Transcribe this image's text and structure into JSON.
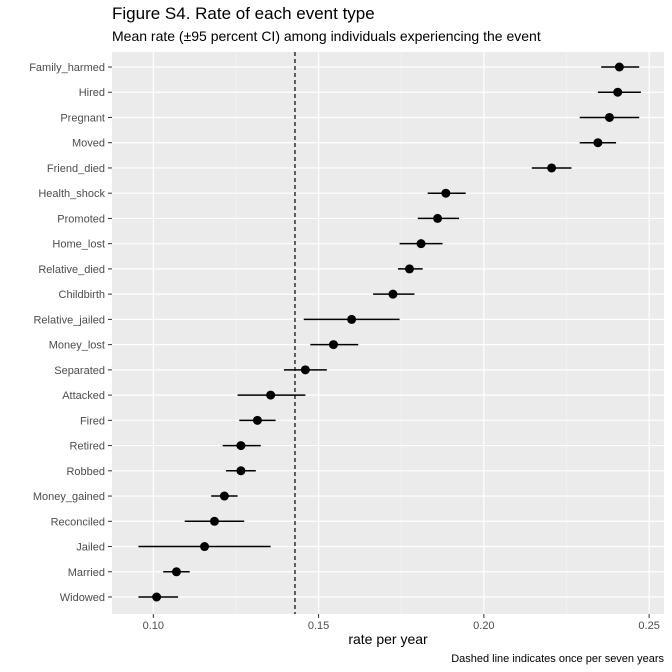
{
  "chart_data": {
    "type": "scatter",
    "title": "Figure S4. Rate of each event type",
    "subtitle": "Mean rate (±95 percent CI) among individuals experiencing the event",
    "xlabel": "rate per year",
    "ylabel": "",
    "caption": "Dashed line indicates once per seven years",
    "xlim": [
      0.0875,
      0.2545
    ],
    "x_ticks": [
      0.1,
      0.15,
      0.2,
      0.25
    ],
    "x_tick_labels": [
      "0.10",
      "0.15",
      "0.20",
      "0.25"
    ],
    "reference_line": 0.142857,
    "grid": true,
    "colors": {
      "panel": "#ebebeb",
      "grid_major": "#ffffff",
      "points": "#000000"
    },
    "points": [
      {
        "label": "Family_harmed",
        "mean": 0.241,
        "lo": 0.2355,
        "hi": 0.247
      },
      {
        "label": "Hired",
        "mean": 0.2405,
        "lo": 0.2345,
        "hi": 0.2475
      },
      {
        "label": "Pregnant",
        "mean": 0.238,
        "lo": 0.229,
        "hi": 0.247
      },
      {
        "label": "Moved",
        "mean": 0.2345,
        "lo": 0.229,
        "hi": 0.24
      },
      {
        "label": "Friend_died",
        "mean": 0.2205,
        "lo": 0.2145,
        "hi": 0.2265
      },
      {
        "label": "Health_shock",
        "mean": 0.1885,
        "lo": 0.183,
        "hi": 0.1945
      },
      {
        "label": "Promoted",
        "mean": 0.186,
        "lo": 0.18,
        "hi": 0.1925
      },
      {
        "label": "Home_lost",
        "mean": 0.181,
        "lo": 0.1745,
        "hi": 0.1875
      },
      {
        "label": "Relative_died",
        "mean": 0.1775,
        "lo": 0.174,
        "hi": 0.1815
      },
      {
        "label": "Childbirth",
        "mean": 0.1725,
        "lo": 0.1665,
        "hi": 0.179
      },
      {
        "label": "Relative_jailed",
        "mean": 0.16,
        "lo": 0.1455,
        "hi": 0.1745
      },
      {
        "label": "Money_lost",
        "mean": 0.1545,
        "lo": 0.1475,
        "hi": 0.162
      },
      {
        "label": "Separated",
        "mean": 0.146,
        "lo": 0.1395,
        "hi": 0.1525
      },
      {
        "label": "Attacked",
        "mean": 0.1355,
        "lo": 0.1255,
        "hi": 0.146
      },
      {
        "label": "Fired",
        "mean": 0.1315,
        "lo": 0.126,
        "hi": 0.137
      },
      {
        "label": "Retired",
        "mean": 0.1265,
        "lo": 0.121,
        "hi": 0.1325
      },
      {
        "label": "Robbed",
        "mean": 0.1265,
        "lo": 0.122,
        "hi": 0.131
      },
      {
        "label": "Money_gained",
        "mean": 0.1215,
        "lo": 0.1175,
        "hi": 0.1255
      },
      {
        "label": "Reconciled",
        "mean": 0.1185,
        "lo": 0.1095,
        "hi": 0.1275
      },
      {
        "label": "Jailed",
        "mean": 0.1155,
        "lo": 0.0955,
        "hi": 0.1355
      },
      {
        "label": "Married",
        "mean": 0.107,
        "lo": 0.103,
        "hi": 0.111
      },
      {
        "label": "Widowed",
        "mean": 0.101,
        "lo": 0.0955,
        "hi": 0.1075
      }
    ]
  }
}
